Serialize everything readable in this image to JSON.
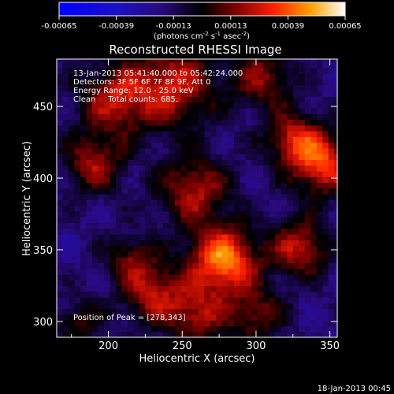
{
  "chart_data": {
    "type": "heatmap",
    "title": "Reconstructed RHESSI Image",
    "xlabel": "Heliocentric X (arcsec)",
    "ylabel": "Heliocentric Y (arcsec)",
    "xlim": [
      165,
      355
    ],
    "ylim": [
      289,
      483
    ],
    "x_ticks": [
      200,
      250,
      300,
      350
    ],
    "y_ticks": [
      300,
      350,
      400,
      450
    ],
    "colorbar": {
      "min": -0.00065,
      "max": 0.00065,
      "ticks": [
        "-0.00065",
        "-0.00039",
        "-0.00013",
        "0.00013",
        "0.00039",
        "0.00065"
      ],
      "units_html": "(photons cm<tspan dy='-4' font-size='7'>-2</tspan><tspan dy='4'> s</tspan><tspan dy='-4' font-size='7'>-1</tspan><tspan dy='4'> asec</tspan><tspan dy='-4' font-size='7'>-2</tspan><tspan dy='4'>)</tspan>"
    },
    "info": [
      "13-Jan-2013 05:41:40.000 to 05:42:24.000",
      "Detectors: 3F 5F 6F 7F 8F 9F, Att 0",
      "Energy Range: 12.0 - 25.0 keV",
      "Clean     Total counts: 685."
    ],
    "peak_label": "Position of Peak = [278,343]",
    "peak": [
      278,
      343
    ],
    "sources": [
      {
        "x": 278,
        "y": 343,
        "amp": 1.0,
        "sigma": 16
      },
      {
        "x": 345,
        "y": 410,
        "amp": 0.8,
        "sigma": 15
      },
      {
        "x": 205,
        "y": 455,
        "amp": 0.6,
        "sigma": 18
      },
      {
        "x": 245,
        "y": 465,
        "amp": 0.65,
        "sigma": 20
      },
      {
        "x": 305,
        "y": 470,
        "amp": 0.5,
        "sigma": 15
      },
      {
        "x": 190,
        "y": 410,
        "amp": 0.55,
        "sigma": 14
      },
      {
        "x": 258,
        "y": 392,
        "amp": 0.6,
        "sigma": 17
      },
      {
        "x": 325,
        "y": 428,
        "amp": 0.6,
        "sigma": 13
      },
      {
        "x": 330,
        "y": 352,
        "amp": 0.65,
        "sigma": 14
      },
      {
        "x": 230,
        "y": 320,
        "amp": 0.6,
        "sigma": 15
      },
      {
        "x": 260,
        "y": 305,
        "amp": 0.55,
        "sigma": 14
      },
      {
        "x": 215,
        "y": 345,
        "amp": 0.4,
        "sigma": 12
      },
      {
        "x": 300,
        "y": 305,
        "amp": 0.45,
        "sigma": 14
      },
      {
        "x": 180,
        "y": 300,
        "amp": 0.35,
        "sigma": 12
      }
    ],
    "grid": false
  },
  "footer": {
    "date": "18-Jan-2013 00:45"
  }
}
